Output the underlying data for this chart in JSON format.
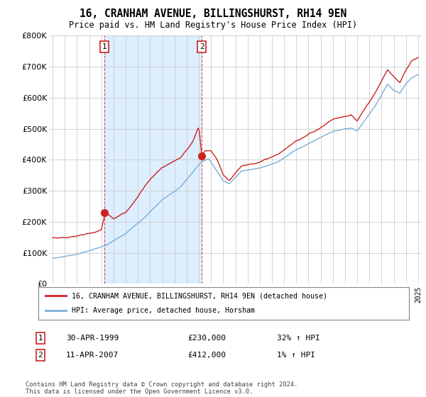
{
  "title": "16, CRANHAM AVENUE, BILLINGSHURST, RH14 9EN",
  "subtitle": "Price paid vs. HM Land Registry's House Price Index (HPI)",
  "legend_line1": "16, CRANHAM AVENUE, BILLINGSHURST, RH14 9EN (detached house)",
  "legend_line2": "HPI: Average price, detached house, Horsham",
  "footer": "Contains HM Land Registry data © Crown copyright and database right 2024.\nThis data is licensed under the Open Government Licence v3.0.",
  "transaction1_date": "30-APR-1999",
  "transaction1_price": "£230,000",
  "transaction1_hpi": "32% ↑ HPI",
  "transaction2_date": "11-APR-2007",
  "transaction2_price": "£412,000",
  "transaction2_hpi": "1% ↑ HPI",
  "hpi_color": "#7aaed6",
  "price_color": "#cc2222",
  "marker_color": "#cc2222",
  "shade_color": "#ddeeff",
  "ylim": [
    0,
    800000
  ],
  "yticks": [
    0,
    100000,
    200000,
    300000,
    400000,
    500000,
    600000,
    700000,
    800000
  ],
  "bg_color": "#ffffff",
  "grid_color": "#cccccc"
}
